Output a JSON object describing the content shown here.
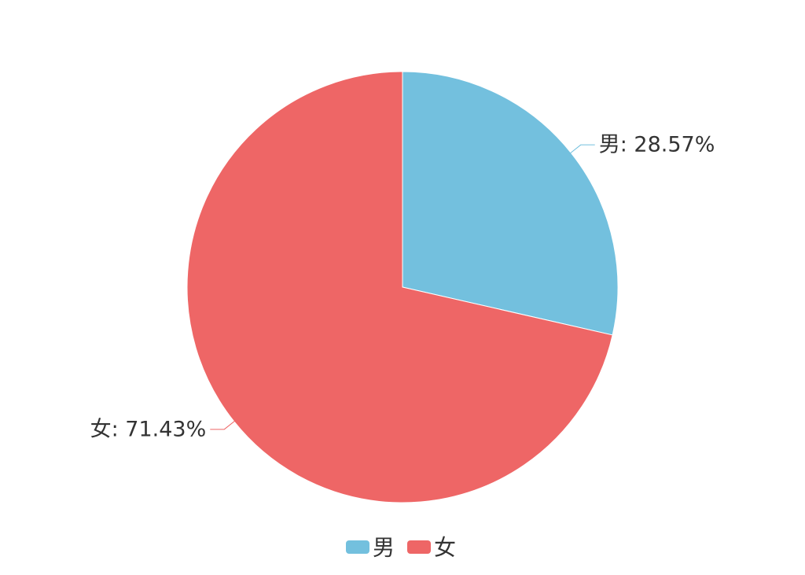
{
  "chart_data": {
    "type": "pie",
    "categories": [
      "男",
      "女"
    ],
    "values": [
      28.57,
      71.43
    ],
    "labels": [
      "男: 28.57%",
      "女: 71.43%"
    ],
    "colors": [
      "#73c0de",
      "#ee6666"
    ],
    "legend": {
      "placement": "bottom",
      "items": [
        "男",
        "女"
      ]
    }
  }
}
